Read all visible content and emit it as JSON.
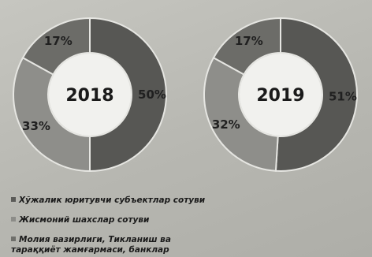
{
  "chart_data": [
    {
      "type": "pie",
      "variant": "donut",
      "center_label": "2018",
      "slices": [
        {
          "label": "50%",
          "value": 50
        },
        {
          "label": "33%",
          "value": 33
        },
        {
          "label": "17%",
          "value": 17
        }
      ]
    },
    {
      "type": "pie",
      "variant": "donut",
      "center_label": "2019",
      "slices": [
        {
          "label": "51%",
          "value": 51
        },
        {
          "label": "32%",
          "value": 32
        },
        {
          "label": "17%",
          "value": 17
        }
      ]
    }
  ],
  "legend": {
    "placement": "bottom-left",
    "items": [
      {
        "label": "Хўжалик юритувчи субъектлар сотуви",
        "color": "#5b5b58"
      },
      {
        "label": "Жисмоний шахслар сотуви",
        "color": "#8c8c88"
      },
      {
        "label": "Молия вазирлиги, Тикланиш ва тараққиёт жамғармаси, банклар",
        "color": "#6f6f6b"
      }
    ]
  },
  "colors": {
    "segment_large": "#575754",
    "segment_mid": "#8e8e8a",
    "segment_small": "#6c6c68",
    "separator": "#e6e6e2",
    "hole": "#f1f1ee"
  }
}
